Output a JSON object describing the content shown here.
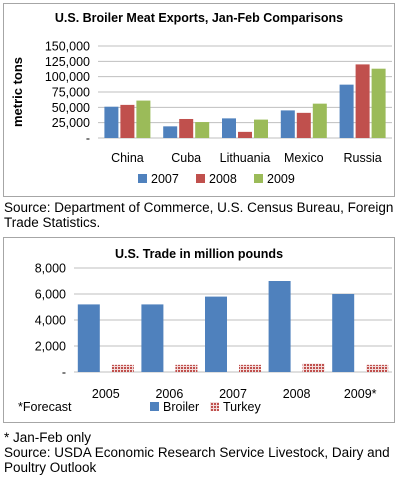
{
  "chart_data": [
    {
      "type": "bar",
      "title": "U.S. Broiler Meat Exports, Jan-Feb Comparisons",
      "ylabel": "metric tons",
      "xlabel": "",
      "categories": [
        "China",
        "Cuba",
        "Lithuania",
        "Mexico",
        "Russia"
      ],
      "series": [
        {
          "name": "2007",
          "color": "#4f81bd",
          "pattern": "solid",
          "values": [
            51000,
            19000,
            32000,
            45000,
            87000
          ]
        },
        {
          "name": "2008",
          "color": "#c0504d",
          "pattern": "solid",
          "values": [
            54000,
            31000,
            10000,
            41000,
            120000
          ]
        },
        {
          "name": "2009",
          "color": "#9bbb59",
          "pattern": "solid",
          "values": [
            61000,
            26000,
            30000,
            56000,
            113000
          ]
        }
      ],
      "ylim": [
        0,
        150000
      ],
      "yticks": [
        0,
        25000,
        50000,
        75000,
        100000,
        125000,
        150000
      ],
      "ytick_labels": [
        "-",
        "25,000",
        "50,000",
        "75,000",
        "100,000",
        "125,000",
        "150,000"
      ],
      "grid": true,
      "legend": "bottom"
    },
    {
      "type": "bar",
      "title": "U.S. Trade in million pounds",
      "ylabel": "",
      "xlabel": "",
      "categories": [
        "2005",
        "2006",
        "2007",
        "2008",
        "2009*"
      ],
      "series": [
        {
          "name": "Broiler",
          "color": "#4f81bd",
          "pattern": "solid",
          "values": [
            5200,
            5200,
            5800,
            7000,
            6000
          ]
        },
        {
          "name": "Turkey",
          "color": "#c0504d",
          "pattern": "dotted",
          "values": [
            550,
            550,
            550,
            650,
            550
          ]
        }
      ],
      "ylim": [
        0,
        8000
      ],
      "yticks": [
        0,
        2000,
        4000,
        6000,
        8000
      ],
      "ytick_labels": [
        "-",
        "2,000",
        "4,000",
        "6,000",
        "8,000"
      ],
      "grid": true,
      "legend": "bottom",
      "note": "*Forecast"
    }
  ],
  "source1": "Source:  Department of Commerce, U.S. Census Bureau, Foreign Trade Statistics.",
  "footnote": "* Jan-Feb only",
  "source2": "Source:  USDA Economic Research Service Livestock, Dairy and Poultry Outlook"
}
